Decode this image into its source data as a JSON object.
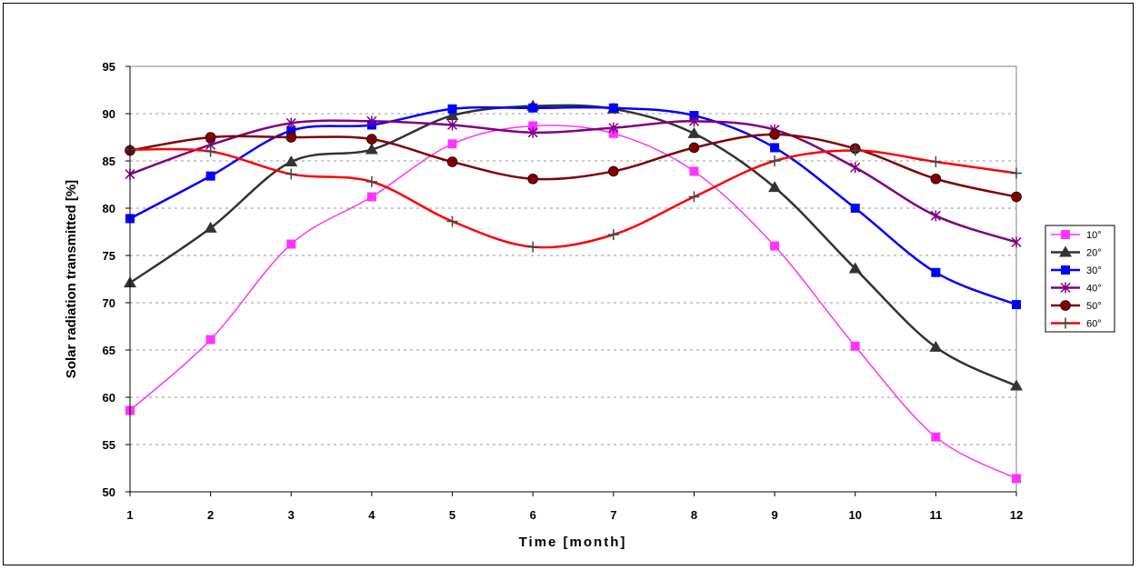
{
  "chart_data": {
    "type": "line",
    "title": "",
    "xlabel": "Time [month]",
    "ylabel": "Solar radiation transmitted [%]",
    "x": [
      1,
      2,
      3,
      4,
      5,
      6,
      7,
      8,
      9,
      10,
      11,
      12
    ],
    "ylim": [
      50,
      95
    ],
    "yticks": [
      50,
      55,
      60,
      65,
      70,
      75,
      80,
      85,
      90,
      95
    ],
    "grid": "horizontal dashed",
    "legend": "right",
    "series": [
      {
        "name": "10°",
        "color": "#ff33ff",
        "marker": "square",
        "width": 1.5,
        "values": [
          58.6,
          66.1,
          76.2,
          81.2,
          86.8,
          88.7,
          87.9,
          83.9,
          76.0,
          65.4,
          55.8,
          51.4
        ]
      },
      {
        "name": "20°",
        "color": "#333333",
        "marker": "triangle",
        "width": 2.5,
        "values": [
          72.1,
          77.9,
          84.9,
          86.2,
          89.8,
          90.8,
          90.5,
          87.9,
          82.2,
          73.6,
          65.3,
          61.2
        ]
      },
      {
        "name": "30°",
        "color": "#0000ff",
        "marker": "square",
        "width": 2.5,
        "values": [
          78.9,
          83.4,
          88.2,
          88.8,
          90.5,
          90.6,
          90.6,
          89.8,
          86.4,
          80.0,
          73.2,
          69.8
        ]
      },
      {
        "name": "40°",
        "color": "#800080",
        "marker": "star",
        "width": 2.5,
        "values": [
          83.6,
          86.7,
          89.0,
          89.2,
          88.8,
          88.0,
          88.5,
          89.2,
          88.3,
          84.3,
          79.2,
          76.4
        ]
      },
      {
        "name": "50°",
        "color": "#800000",
        "marker": "circle",
        "width": 2.5,
        "values": [
          86.1,
          87.5,
          87.5,
          87.3,
          84.9,
          83.1,
          83.9,
          86.4,
          87.8,
          86.3,
          83.1,
          81.2
        ]
      },
      {
        "name": "60°",
        "color": "#ff0000",
        "marker": "plus",
        "width": 2.5,
        "values": [
          86.2,
          86.0,
          83.6,
          82.8,
          78.6,
          75.9,
          77.2,
          81.2,
          85.0,
          86.1,
          84.9,
          83.7
        ]
      }
    ]
  }
}
